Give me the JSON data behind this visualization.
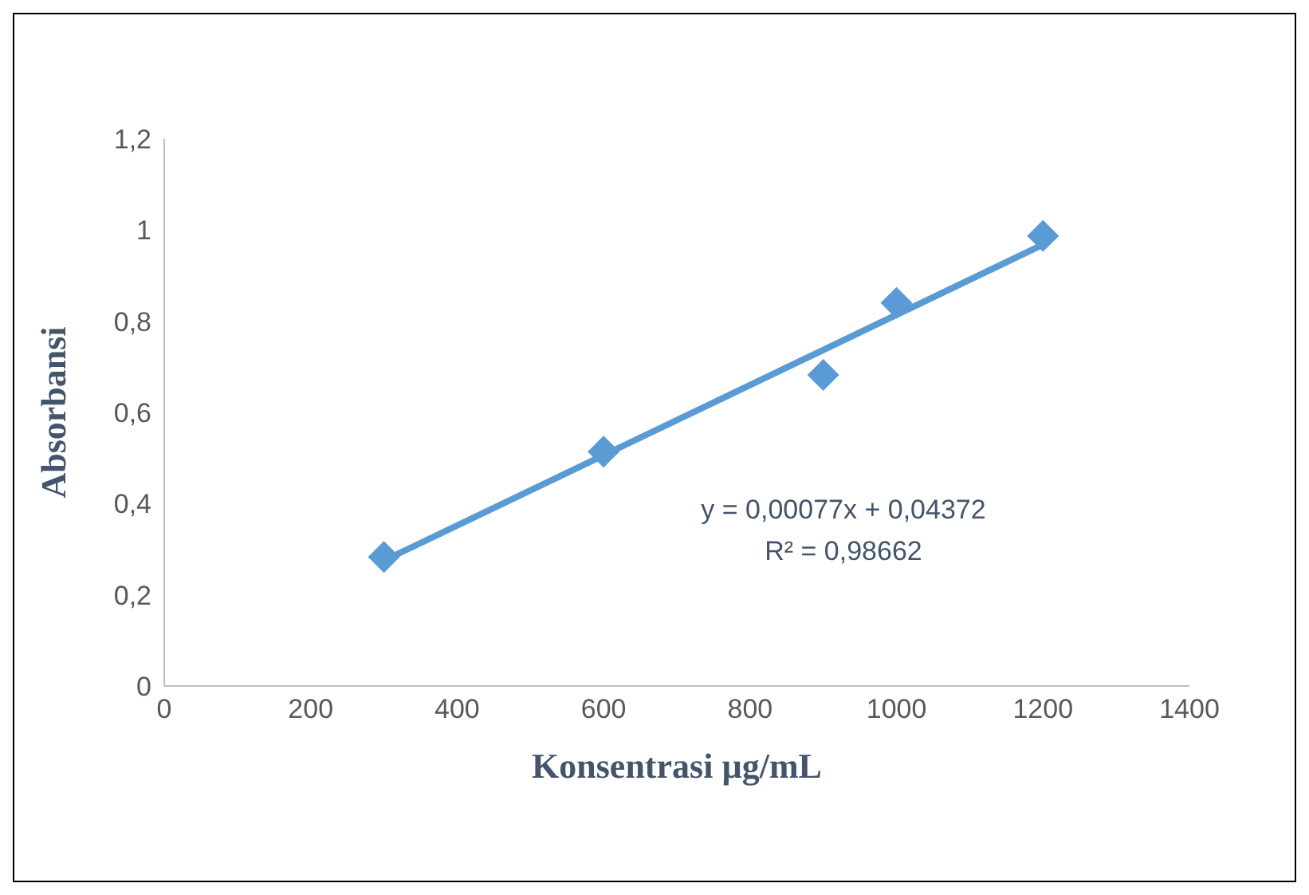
{
  "chart_data": {
    "type": "scatter",
    "xlabel": "Konsentrasi µg/mL",
    "ylabel": "Absorbansi",
    "series": [
      {
        "color": "#5b9bd5",
        "x": [
          300,
          600,
          900,
          1000,
          1200
        ],
        "values": [
          0.283,
          0.514,
          0.682,
          0.84,
          0.987
        ],
        "marker": "diamond"
      },
      {
        "type": "line",
        "color": "#5b9bd5",
        "x": [
          300,
          1200
        ],
        "values": [
          0.275,
          0.968
        ],
        "marker": "none"
      }
    ],
    "xlim": [
      0,
      1400
    ],
    "xticks": [
      0,
      200,
      400,
      600,
      800,
      1000,
      1200,
      1400
    ],
    "ylim": [
      0,
      1.2
    ],
    "yticks": [
      0,
      {
        "value": 0.2,
        "label": "0,2"
      },
      {
        "value": 0.4,
        "label": "0,4"
      },
      {
        "value": 0.6,
        "label": "0,6"
      },
      {
        "value": 0.8,
        "label": "0,8"
      },
      1,
      {
        "value": 1.2,
        "label": "1,2"
      }
    ],
    "annotations": [
      "y = 0,00077x + 0,04372",
      "R² = 0,98662"
    ],
    "grid": false,
    "legend": false
  }
}
